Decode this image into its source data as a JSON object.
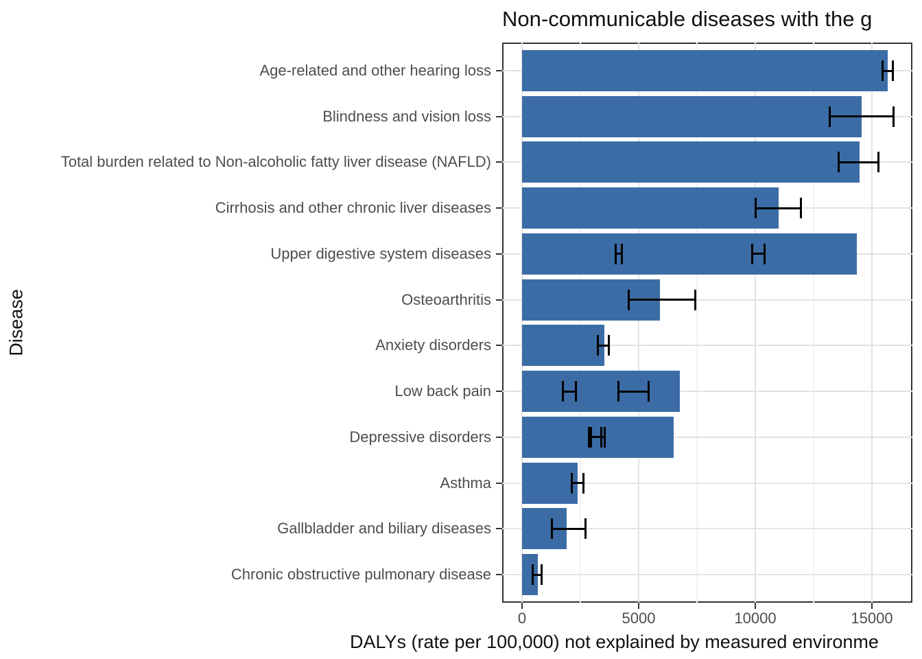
{
  "chart_data": {
    "type": "bar",
    "orientation": "horizontal",
    "title": "Non-communicable diseases with the g",
    "xlabel": "DALYs (rate per 100,000) not explained by measured environme",
    "ylabel": "Disease",
    "bar_color": "#3c6ca5",
    "grid": "on",
    "legend": "none",
    "xlim": [
      0,
      16740
    ],
    "x_major_ticks": [
      0,
      5000,
      10000,
      15000
    ],
    "x_tick_labels": [
      "0",
      "5000",
      "10000",
      "15000"
    ],
    "x_minor_gridlines": [
      2500,
      7500,
      12500
    ],
    "categories": [
      "Age-related and other hearing loss",
      "Blindness and vision loss",
      "Total burden related to Non-alcoholic fatty liver disease (NAFLD)",
      "Cirrhosis and other chronic liver diseases",
      "Upper digestive system diseases",
      "Osteoarthritis",
      "Anxiety disorders",
      "Low back pain",
      "Depressive disorders",
      "Asthma",
      "Gallbladder and biliary diseases",
      "Chronic obstructive pulmonary disease"
    ],
    "values": [
      15680,
      14550,
      14480,
      11000,
      14360,
      5920,
      3520,
      6765,
      6500,
      2380,
      1910,
      680
    ],
    "error_bars": [
      [
        [
          15450,
          15900
        ]
      ],
      [
        [
          13190,
          15930
        ]
      ],
      [
        [
          13560,
          15270
        ]
      ],
      [
        [
          10000,
          11950
        ]
      ],
      [
        [
          4020,
          4270
        ],
        [
          9870,
          10410
        ]
      ],
      [
        [
          4580,
          7420
        ]
      ],
      [
        [
          3260,
          3730
        ]
      ],
      [
        [
          1760,
          2320
        ],
        [
          4140,
          5430
        ]
      ],
      [
        [
          2860,
          3400
        ],
        [
          2950,
          3530
        ]
      ],
      [
        [
          2120,
          2620
        ]
      ],
      [
        [
          1280,
          2715
        ]
      ],
      [
        [
          460,
          830
        ]
      ]
    ]
  }
}
